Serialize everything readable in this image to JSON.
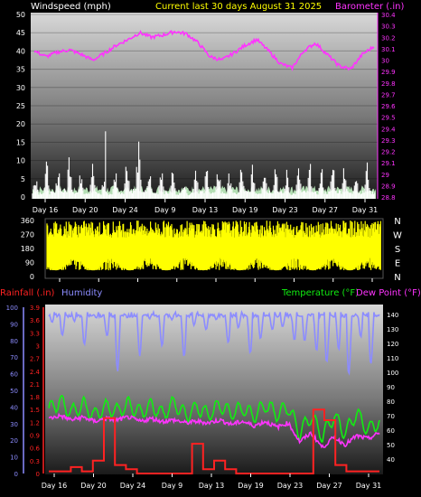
{
  "header": {
    "left_label": "Windspeed (mph)",
    "center_label": "Current last 30 days August 31 2025",
    "right_label": "Barometer (.in)"
  },
  "colors": {
    "wind": "#ffffff",
    "gust_fill": "#ccffcc",
    "barometer": "#ff33ff",
    "center_title": "#ffff00",
    "direction": "#ffff00",
    "rain": "#ff2222",
    "humidity": "#8c8cff",
    "temperature": "#11ee11",
    "dewpoint": "#ff33ff"
  },
  "x_axis": {
    "ticks": [
      "Day 16",
      "Day 20",
      "Day 24",
      "Day 9",
      "Day 13",
      "Day 19",
      "Day 23",
      "Day 27",
      "Day 31"
    ]
  },
  "bottom_header": {
    "rain_label": "Rainfall (.in)",
    "humidity_label": "Humidity",
    "temp_label": "Temperature (°F)",
    "dew_label": "Dew Point (°F)"
  },
  "chart_data": [
    {
      "type": "line",
      "name": "top-panel",
      "series": [
        {
          "name": "Windspeed (mph)",
          "axis": "left",
          "style": "bars",
          "values": [
            5,
            8,
            6,
            11,
            6,
            8,
            4,
            6,
            9,
            12,
            5,
            8,
            6,
            4,
            9,
            6,
            7,
            5,
            8,
            6,
            9,
            7,
            5,
            8,
            6,
            7,
            9,
            6,
            8,
            7
          ]
        },
        {
          "name": "Barometer (.in)",
          "axis": "right",
          "values": [
            30.08,
            30.03,
            30.07,
            30.09,
            30.05,
            30.0,
            30.06,
            30.13,
            30.18,
            30.24,
            30.2,
            30.22,
            30.25,
            30.23,
            30.15,
            30.03,
            30.0,
            30.06,
            30.13,
            30.18,
            30.08,
            29.97,
            29.93,
            30.08,
            30.15,
            30.05,
            29.95,
            29.92,
            30.05,
            30.12
          ]
        }
      ],
      "left_axis": {
        "ylim": [
          0,
          50
        ],
        "ticks": [
          0,
          5,
          10,
          15,
          20,
          25,
          30,
          35,
          40,
          45,
          50
        ]
      },
      "right_axis": {
        "ylim": [
          28.8,
          30.4
        ],
        "ticks": [
          "28.8",
          "28.9",
          "29",
          "29.1",
          "29.2",
          "29.3",
          "29.4",
          "29.5",
          "29.6",
          "29.7",
          "29.8",
          "29.9",
          "30",
          "30.1",
          "30.2",
          "30.3",
          "30.4"
        ]
      }
    },
    {
      "type": "scatter",
      "name": "wind-direction",
      "ylim": [
        0,
        360
      ],
      "left_ticks": [
        0,
        90,
        180,
        270,
        360
      ],
      "right_labels": [
        "N",
        "W",
        "S",
        "E",
        "N"
      ]
    },
    {
      "type": "line",
      "name": "bottom-panel",
      "series": [
        {
          "name": "Humidity",
          "axis": "left-blue",
          "values": [
            95,
            80,
            96,
            75,
            95,
            85,
            60,
            96,
            70,
            96,
            75,
            96,
            66,
            96,
            84,
            96,
            72,
            96,
            60,
            96,
            80,
            96,
            66,
            96,
            48,
            96,
            42,
            96,
            55,
            96
          ]
        },
        {
          "name": "Temperature (°F)",
          "axis": "right",
          "values": [
            74,
            80,
            72,
            78,
            70,
            76,
            73,
            78,
            72,
            77,
            71,
            79,
            70,
            76,
            71,
            77,
            72,
            75,
            70,
            78,
            71,
            76,
            58,
            70,
            56,
            70,
            58,
            72,
            60,
            66
          ]
        },
        {
          "name": "Dew Point (°F)",
          "axis": "right",
          "values": [
            68,
            70,
            67,
            69,
            66,
            68,
            67,
            69,
            66,
            68,
            66,
            67,
            65,
            66,
            65,
            67,
            64,
            66,
            63,
            66,
            62,
            65,
            52,
            58,
            48,
            55,
            50,
            56,
            54,
            58
          ]
        },
        {
          "name": "Rainfall (.in)",
          "axis": "left-red",
          "style": "step",
          "values": [
            0.05,
            0.05,
            0.15,
            0.05,
            0.3,
            1.3,
            0.2,
            0.1,
            0,
            0,
            0,
            0,
            0,
            0.7,
            0.1,
            0.3,
            0.1,
            0,
            0,
            0,
            0,
            0,
            0,
            0,
            1.5,
            1.25,
            0.2,
            0.05,
            0.05,
            0.05
          ]
        }
      ],
      "left_red_axis": {
        "ylim": [
          0,
          3.9
        ],
        "ticks": [
          "0",
          "0.3",
          "0.6",
          "0.9",
          "1.2",
          "1.5",
          "1.8",
          "2.1",
          "2.4",
          "2.7",
          "3",
          "3.3",
          "3.6",
          "3.9"
        ]
      },
      "left_blue_axis": {
        "ylim": [
          0,
          100
        ],
        "ticks": [
          0,
          10,
          20,
          30,
          40,
          50,
          60,
          70,
          80,
          90,
          100
        ]
      },
      "right_axis": {
        "ylim": [
          30,
          145
        ],
        "ticks": [
          40,
          50,
          60,
          70,
          80,
          90,
          100,
          110,
          120,
          130,
          140
        ]
      }
    }
  ]
}
